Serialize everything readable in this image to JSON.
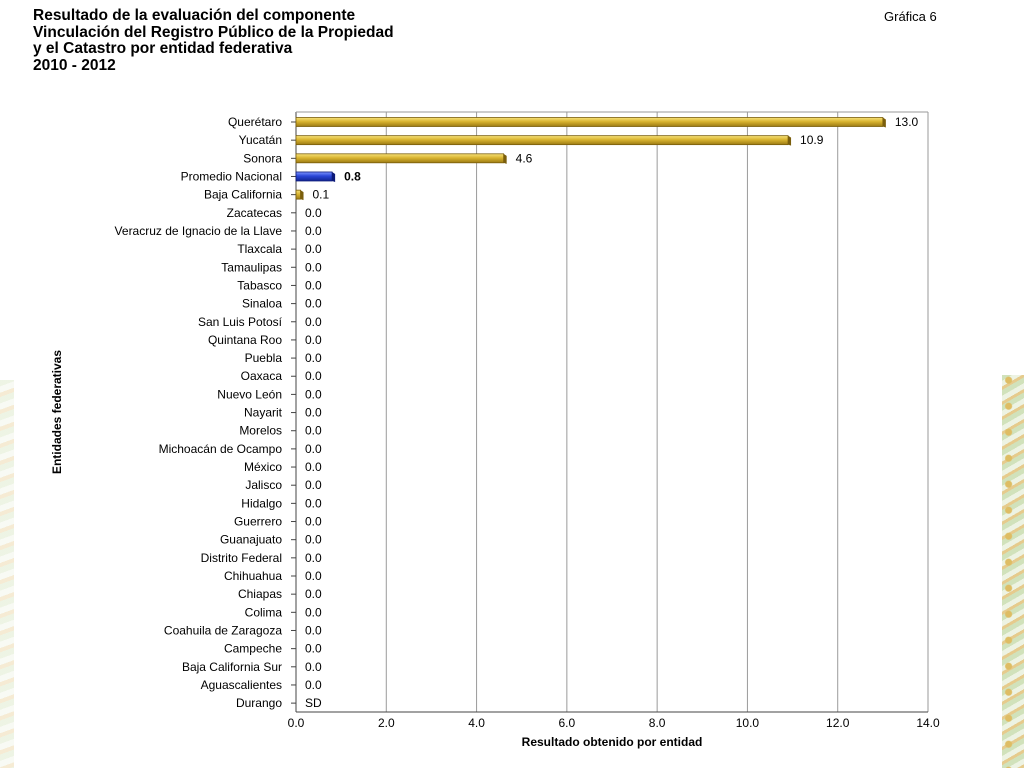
{
  "header": {
    "title": "Resultado de la evaluación del componente\nVinculación del Registro Público de la Propiedad\ny el Catastro por entidad federativa\n2010 - 2012",
    "figure_label": "Gráfica 6"
  },
  "chart_data": {
    "type": "bar",
    "orientation": "horizontal",
    "title": "Resultado de la evaluación del componente Vinculación del Registro Público de la Propiedad y el Catastro por entidad federativa 2010 - 2012",
    "xlabel": "Resultado obtenido por entidad",
    "ylabel": "Entidades federativas",
    "xlim": [
      0,
      14
    ],
    "xticks": [
      "0.0",
      "2.0",
      "4.0",
      "6.0",
      "8.0",
      "10.0",
      "12.0",
      "14.0"
    ],
    "grid": true,
    "categories": [
      "Querétaro",
      "Yucatán",
      "Sonora",
      "Promedio Nacional",
      "Baja California",
      "Zacatecas",
      "Veracruz de Ignacio de la Llave",
      "Tlaxcala",
      "Tamaulipas",
      "Tabasco",
      "Sinaloa",
      "San Luis Potosí",
      "Quintana Roo",
      "Puebla",
      "Oaxaca",
      "Nuevo León",
      "Nayarit",
      "Morelos",
      "Michoacán de Ocampo",
      "México",
      "Jalisco",
      "Hidalgo",
      "Guerrero",
      "Guanajuato",
      "Distrito Federal",
      "Chihuahua",
      "Chiapas",
      "Colima",
      "Coahuila de Zaragoza",
      "Campeche",
      "Baja California Sur",
      "Aguascalientes",
      "Durango"
    ],
    "values": [
      13.0,
      10.9,
      4.6,
      0.8,
      0.1,
      0,
      0,
      0,
      0,
      0,
      0,
      0,
      0,
      0,
      0,
      0,
      0,
      0,
      0,
      0,
      0,
      0,
      0,
      0,
      0,
      0,
      0,
      0,
      0,
      0,
      0,
      0,
      null
    ],
    "value_labels": [
      "13.0",
      "10.9",
      "4.6",
      "0.8",
      "0.1",
      "0.0",
      "0.0",
      "0.0",
      "0.0",
      "0.0",
      "0.0",
      "0.0",
      "0.0",
      "0.0",
      "0.0",
      "0.0",
      "0.0",
      "0.0",
      "0.0",
      "0.0",
      "0.0",
      "0.0",
      "0.0",
      "0.0",
      "0.0",
      "0.0",
      "0.0",
      "0.0",
      "0.0",
      "0.0",
      "0.0",
      "0.0",
      "SD"
    ],
    "highlight_category": "Promedio Nacional",
    "colors": {
      "bar": "#d9b430",
      "bar_dark": "#7a5e0c",
      "highlight": "#2a46d6",
      "highlight_dark": "#0d1a78",
      "grid": "#9a9a9a"
    }
  }
}
